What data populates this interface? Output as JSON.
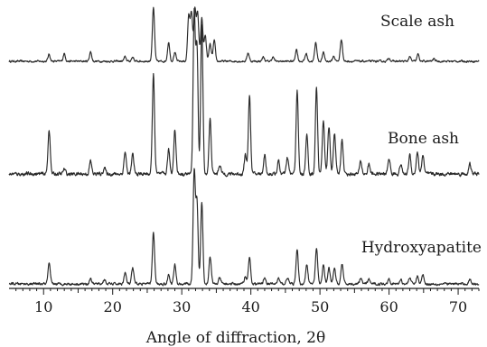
{
  "chart_data": {
    "type": "line",
    "xlabel": "Angle of diffraction, 2θ",
    "xlim": [
      5,
      73
    ],
    "x_ticks": [
      10,
      20,
      30,
      40,
      50,
      60,
      70
    ],
    "series": [
      {
        "name": "Scale ash",
        "peaks": [
          [
            10.8,
            0.08
          ],
          [
            13.0,
            0.09
          ],
          [
            16.8,
            0.11
          ],
          [
            21.8,
            0.05
          ],
          [
            22.9,
            0.05
          ],
          [
            25.9,
            0.62
          ],
          [
            28.1,
            0.22
          ],
          [
            29.0,
            0.1
          ],
          [
            31.0,
            0.52
          ],
          [
            31.4,
            0.57
          ],
          [
            31.9,
            0.6
          ],
          [
            32.3,
            0.55
          ],
          [
            32.9,
            0.5
          ],
          [
            33.4,
            0.3
          ],
          [
            34.1,
            0.2
          ],
          [
            34.7,
            0.24
          ],
          [
            39.6,
            0.1
          ],
          [
            41.8,
            0.05
          ],
          [
            43.2,
            0.05
          ],
          [
            46.6,
            0.14
          ],
          [
            48.0,
            0.09
          ],
          [
            49.4,
            0.22
          ],
          [
            50.5,
            0.1
          ],
          [
            52.0,
            0.06
          ],
          [
            53.1,
            0.26
          ],
          [
            60.0,
            0.04
          ],
          [
            63.0,
            0.05
          ],
          [
            64.2,
            0.08
          ],
          [
            66.5,
            0.03
          ]
        ]
      },
      {
        "name": "Bone ash",
        "peaks": [
          [
            10.8,
            0.28
          ],
          [
            13.0,
            0.03
          ],
          [
            16.8,
            0.08
          ],
          [
            18.8,
            0.04
          ],
          [
            21.8,
            0.14
          ],
          [
            22.9,
            0.12
          ],
          [
            25.9,
            0.62
          ],
          [
            28.1,
            0.15
          ],
          [
            29.0,
            0.28
          ],
          [
            31.8,
            1.0
          ],
          [
            32.2,
            0.78
          ],
          [
            32.9,
            0.93
          ],
          [
            34.1,
            0.34
          ],
          [
            35.5,
            0.06
          ],
          [
            39.2,
            0.12
          ],
          [
            39.8,
            0.5
          ],
          [
            42.0,
            0.12
          ],
          [
            44.0,
            0.08
          ],
          [
            45.3,
            0.1
          ],
          [
            46.7,
            0.52
          ],
          [
            48.1,
            0.24
          ],
          [
            49.5,
            0.54
          ],
          [
            50.5,
            0.34
          ],
          [
            51.3,
            0.3
          ],
          [
            52.1,
            0.26
          ],
          [
            53.2,
            0.22
          ],
          [
            55.9,
            0.08
          ],
          [
            57.1,
            0.06
          ],
          [
            60.0,
            0.1
          ],
          [
            61.7,
            0.06
          ],
          [
            63.0,
            0.12
          ],
          [
            64.1,
            0.14
          ],
          [
            64.9,
            0.12
          ],
          [
            71.7,
            0.06
          ]
        ]
      },
      {
        "name": "Hydroxyapatite",
        "peaks": [
          [
            10.8,
            0.18
          ],
          [
            16.8,
            0.05
          ],
          [
            18.8,
            0.04
          ],
          [
            21.8,
            0.1
          ],
          [
            22.9,
            0.14
          ],
          [
            25.9,
            0.46
          ],
          [
            28.1,
            0.08
          ],
          [
            29.0,
            0.17
          ],
          [
            31.8,
            1.0
          ],
          [
            32.2,
            0.72
          ],
          [
            32.9,
            0.73
          ],
          [
            34.1,
            0.25
          ],
          [
            35.5,
            0.05
          ],
          [
            39.2,
            0.07
          ],
          [
            39.8,
            0.24
          ],
          [
            42.0,
            0.06
          ],
          [
            44.0,
            0.05
          ],
          [
            45.3,
            0.06
          ],
          [
            46.7,
            0.3
          ],
          [
            48.1,
            0.18
          ],
          [
            49.5,
            0.32
          ],
          [
            50.5,
            0.17
          ],
          [
            51.3,
            0.14
          ],
          [
            52.1,
            0.14
          ],
          [
            53.2,
            0.18
          ],
          [
            55.9,
            0.05
          ],
          [
            57.1,
            0.04
          ],
          [
            60.0,
            0.05
          ],
          [
            61.7,
            0.04
          ],
          [
            63.0,
            0.06
          ],
          [
            64.1,
            0.07
          ],
          [
            64.9,
            0.08
          ],
          [
            71.7,
            0.04
          ]
        ]
      }
    ]
  }
}
